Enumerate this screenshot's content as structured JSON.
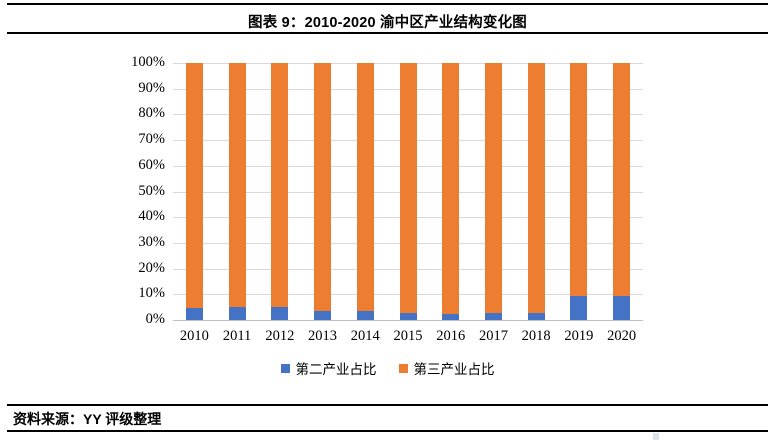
{
  "header": {
    "title": "图表 9：2010-2020 渝中区产业结构变化图"
  },
  "chart_data": {
    "type": "bar",
    "stacked": true,
    "stacked_100_percent": true,
    "title": "图表 9：2010-2020 渝中区产业结构变化图",
    "categories": [
      "2010",
      "2011",
      "2012",
      "2013",
      "2014",
      "2015",
      "2016",
      "2017",
      "2018",
      "2019",
      "2020"
    ],
    "series": [
      {
        "name": "第二产业占比",
        "color": "#4472C4",
        "values": [
          4.8,
          5.2,
          4.9,
          3.4,
          3.4,
          2.8,
          2.5,
          2.6,
          2.9,
          9.3,
          9.5
        ]
      },
      {
        "name": "第三产业占比",
        "color": "#ED7D31",
        "values": [
          95.2,
          94.8,
          95.1,
          96.6,
          96.6,
          97.2,
          97.5,
          97.4,
          97.1,
          90.7,
          90.5
        ]
      }
    ],
    "xlabel": "",
    "ylabel": "",
    "ylim": [
      0,
      100
    ],
    "yticks": [
      "100%",
      "90%",
      "80%",
      "70%",
      "60%",
      "50%",
      "40%",
      "30%",
      "20%",
      "10%",
      "0%"
    ],
    "grid": true,
    "grid_color": "#D9D9D9",
    "axis_line_color": "#BFBFBF",
    "legend_position": "bottom"
  },
  "footer": {
    "source_label": "资料来源：YY 评级整理"
  }
}
